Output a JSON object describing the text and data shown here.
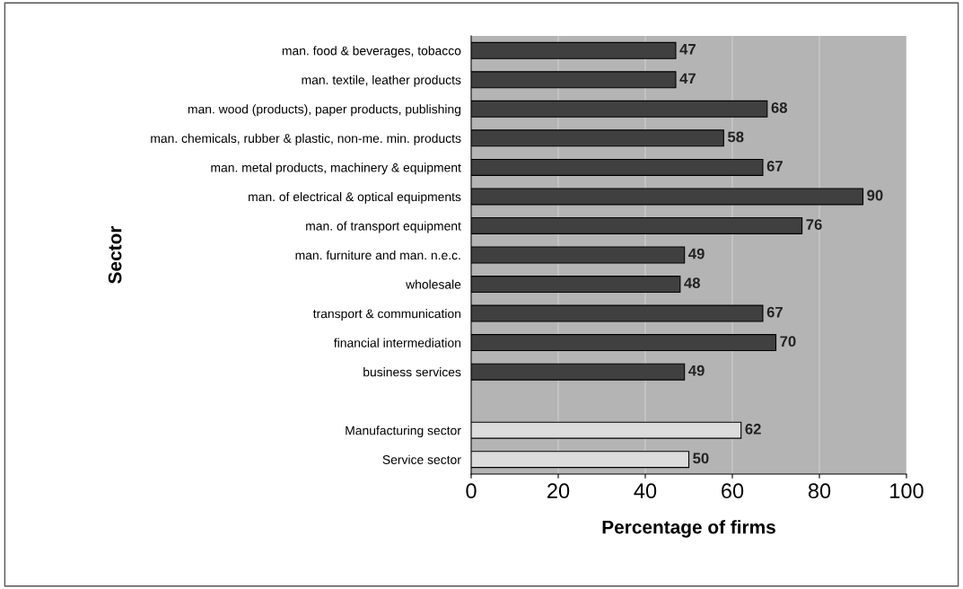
{
  "chart_data": {
    "type": "bar",
    "orientation": "horizontal",
    "xlabel": "Percentage of firms",
    "ylabel": "Sector",
    "categories": [
      "man. food & beverages, tobacco",
      "man. textile, leather products",
      "man. wood (products), paper products, publishing",
      "man. chemicals, rubber & plastic, non-me. min. products",
      "man. metal products, machinery & equipment",
      "man. of electrical & optical equipments",
      "man. of transport equipment",
      "man. furniture and man. n.e.c.",
      "wholesale",
      "transport & communication",
      "financial intermediation",
      "business services",
      null,
      "Manufacturing sector",
      "Service sector"
    ],
    "values": [
      47,
      47,
      68,
      58,
      67,
      90,
      76,
      49,
      48,
      67,
      70,
      49,
      null,
      62,
      50
    ],
    "colors": [
      "#404040",
      "#404040",
      "#404040",
      "#404040",
      "#404040",
      "#404040",
      "#404040",
      "#404040",
      "#404040",
      "#404040",
      "#404040",
      "#404040",
      "#404040",
      "#dcdcdc",
      "#dcdcdc"
    ],
    "xlim": [
      0,
      100
    ],
    "xticks": [
      0,
      20,
      40,
      60,
      80,
      100
    ],
    "grid": "x",
    "data_labels": true
  }
}
